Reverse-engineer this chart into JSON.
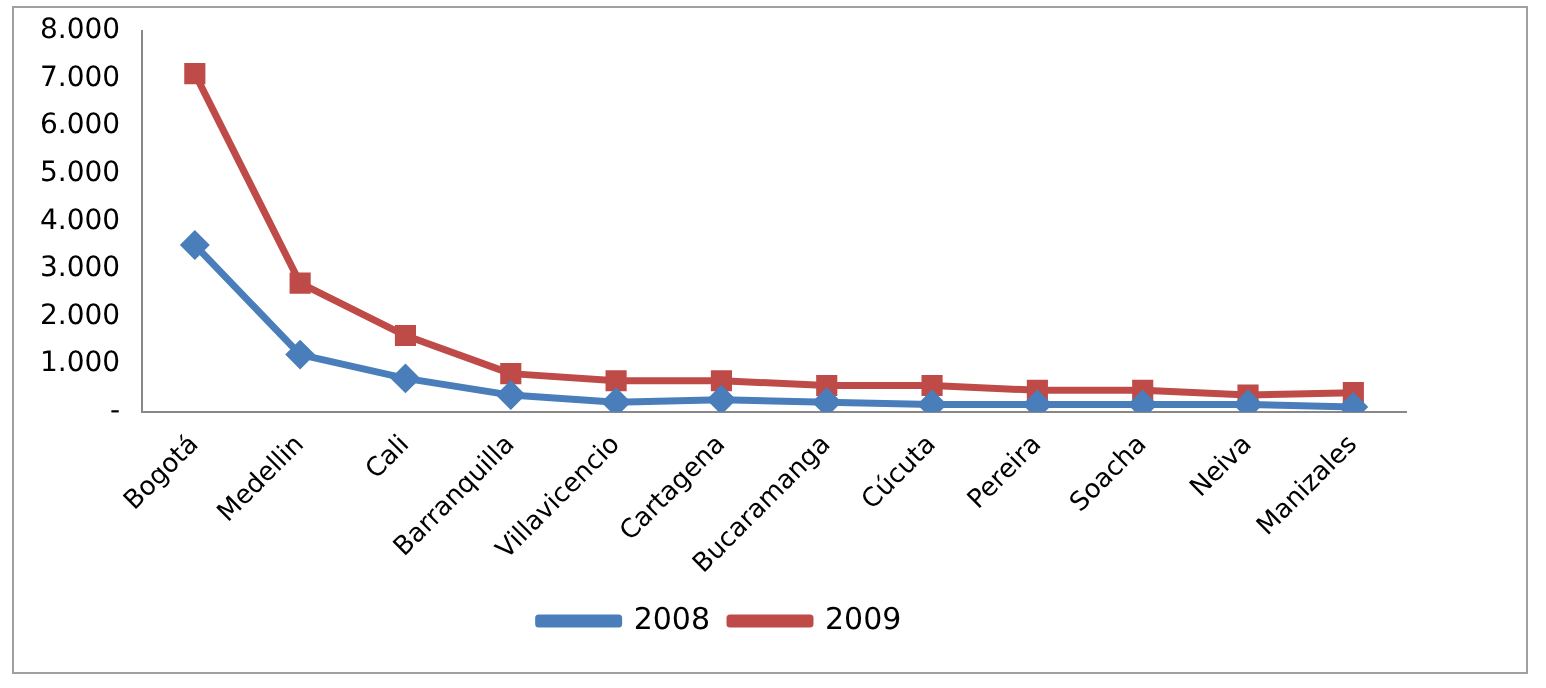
{
  "chart_data": {
    "type": "line",
    "categories": [
      "Bogotá",
      "Medellin",
      "Cali",
      "Barranquilla",
      "Villavicencio",
      "Cartagena",
      "Bucaramanga",
      "Cúcuta",
      "Pereira",
      "Soacha",
      "Neiva",
      "Manizales"
    ],
    "series": [
      {
        "name": "2008",
        "color": "#4a7ebb",
        "marker": "diamond",
        "values": [
          3500,
          1200,
          700,
          350,
          200,
          250,
          200,
          150,
          150,
          150,
          150,
          100
        ]
      },
      {
        "name": "2009",
        "color": "#be4b48",
        "marker": "square",
        "values": [
          7100,
          2700,
          1600,
          800,
          650,
          650,
          550,
          550,
          450,
          450,
          350,
          400
        ]
      }
    ],
    "ylim": [
      0,
      8000
    ],
    "yticks": [
      {
        "value": 0,
        "label": "-"
      },
      {
        "value": 1000,
        "label": "1.000"
      },
      {
        "value": 2000,
        "label": "2.000"
      },
      {
        "value": 3000,
        "label": "3.000"
      },
      {
        "value": 4000,
        "label": "4.000"
      },
      {
        "value": 5000,
        "label": "5.000"
      },
      {
        "value": 6000,
        "label": "6.000"
      },
      {
        "value": 7000,
        "label": "7.000"
      },
      {
        "value": 8000,
        "label": "8.000"
      }
    ],
    "grid": false,
    "legend": "bottom"
  }
}
